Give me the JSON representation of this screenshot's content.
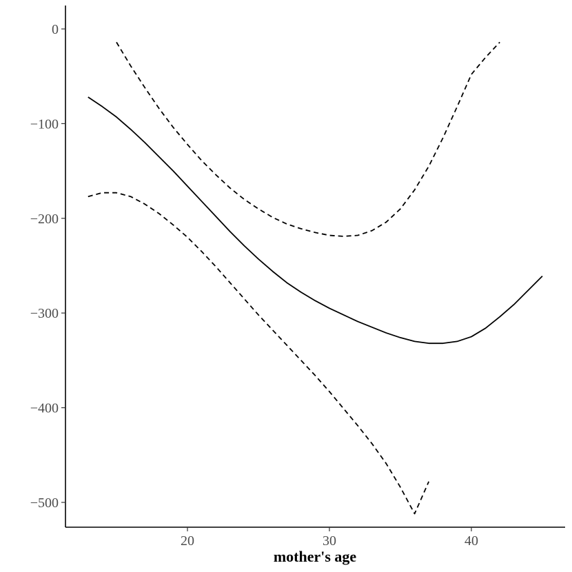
{
  "chart_data": {
    "type": "line",
    "title": "",
    "xlabel": "mother's age",
    "ylabel": "",
    "xlim": [
      12,
      46.5
    ],
    "ylim": [
      -525,
      25
    ],
    "xticks": [
      20,
      30,
      40
    ],
    "yticks": [
      0,
      -100,
      -200,
      -300,
      -400,
      -500
    ],
    "xtick_labels": [
      "20",
      "30",
      "40"
    ],
    "ytick_labels": [
      "0",
      "−100",
      "−200",
      "−300",
      "−400",
      "−500"
    ],
    "grid": false,
    "series": [
      {
        "style": "solid",
        "x": [
          13,
          14,
          15,
          16,
          17,
          18,
          19,
          20,
          21,
          22,
          23,
          24,
          25,
          26,
          27,
          28,
          29,
          30,
          31,
          32,
          33,
          34,
          35,
          36,
          37,
          38,
          39,
          40,
          41,
          42,
          43,
          44,
          45
        ],
        "y": [
          -72,
          -82,
          -93,
          -106,
          -120,
          -135,
          -150,
          -166,
          -182,
          -198,
          -214,
          -229,
          -243,
          -256,
          -268,
          -278,
          -287,
          -295,
          -302,
          -309,
          -315,
          -321,
          -326,
          -330,
          -332,
          -332,
          -330,
          -325,
          -316,
          -304,
          -291,
          -276,
          -261
        ]
      },
      {
        "style": "dashed",
        "x": [
          15,
          16,
          17,
          18,
          19,
          20,
          21,
          22,
          23,
          24,
          25,
          26,
          27,
          28,
          29,
          30,
          31,
          32,
          33,
          34,
          35,
          36,
          37,
          38,
          39,
          40,
          41,
          42
        ],
        "y": [
          -14,
          -39,
          -62,
          -84,
          -104,
          -122,
          -139,
          -154,
          -168,
          -180,
          -190,
          -199,
          -206,
          -211,
          -215,
          -218,
          -219,
          -218,
          -213,
          -204,
          -190,
          -170,
          -145,
          -115,
          -82,
          -48,
          -30,
          -14
        ]
      },
      {
        "style": "dashed",
        "x": [
          13,
          14,
          15,
          16,
          17,
          18,
          19,
          20,
          21,
          22,
          23,
          24,
          25,
          26,
          27,
          28,
          29,
          30,
          31,
          32,
          33,
          34,
          35,
          36,
          37
        ],
        "y": [
          -177,
          -173,
          -173,
          -177,
          -185,
          -195,
          -207,
          -220,
          -235,
          -251,
          -268,
          -285,
          -302,
          -318,
          -334,
          -350,
          -366,
          -383,
          -401,
          -419,
          -438,
          -459,
          -484,
          -512,
          -478
        ]
      }
    ]
  }
}
